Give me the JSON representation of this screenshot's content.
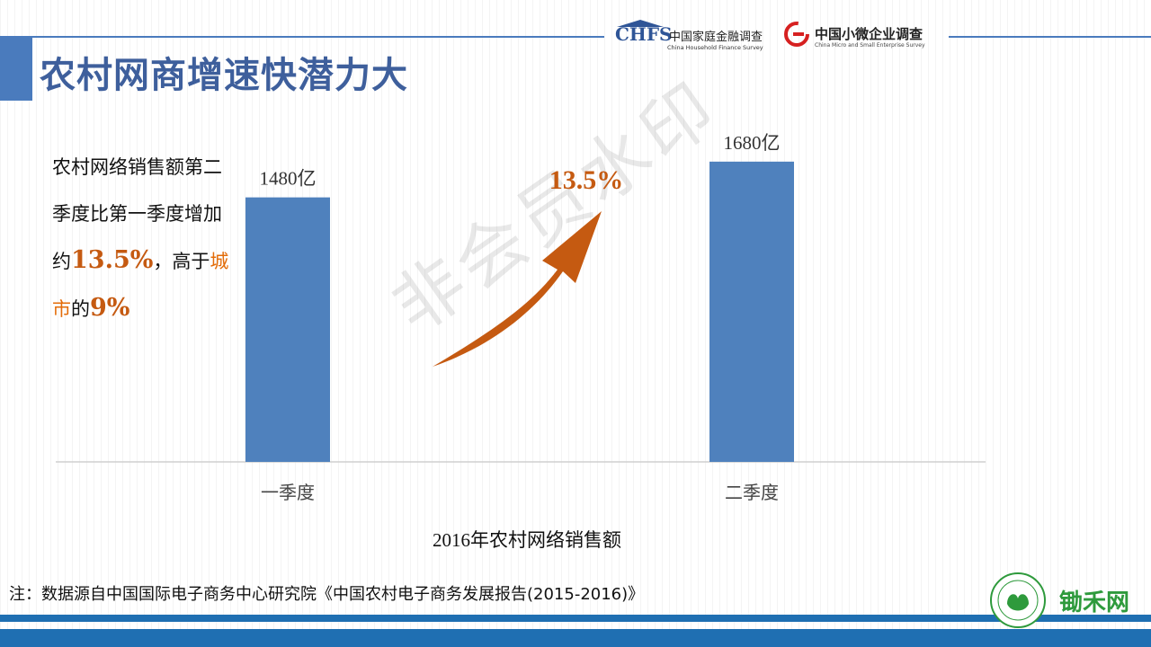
{
  "header": {
    "title": "农村网商增速快潜力大",
    "logo_chfs": {
      "abbr": "CHFS",
      "cn": "中国家庭金融调查",
      "en": "China Household Finance Survey"
    },
    "logo_cmes": {
      "cn": "中国小微企业调查",
      "en": "China Micro and Small Enterprise Survey"
    }
  },
  "description": {
    "line1": "农村网络销售额第二",
    "line2": "季度比第一季度增加",
    "line3_prefix": "约",
    "line3_num": "13.5%",
    "line3_mid": "，高于",
    "line3_hl": "城",
    "line4_hl": "市",
    "line4_mid": "的",
    "line4_num": "9%"
  },
  "chart_data": {
    "type": "bar",
    "title": "2016年农村网络销售额",
    "categories": [
      "一季度",
      "二季度"
    ],
    "values": [
      1480,
      1680
    ],
    "data_labels": [
      "1480亿",
      "1680亿"
    ],
    "unit": "亿",
    "ylim": [
      0,
      1800
    ],
    "grid": false,
    "growth_annotation": "13.5%",
    "colors": {
      "bar": "#4f81bd",
      "arrow": "#c55a11",
      "annotation": "#c55a11"
    }
  },
  "watermark": "非会员水印",
  "note": "注：数据源自中国国际电子商务中心研究院《中国农村电子商务发展报告(2015-2016)》",
  "brand": {
    "name": "锄禾网"
  }
}
